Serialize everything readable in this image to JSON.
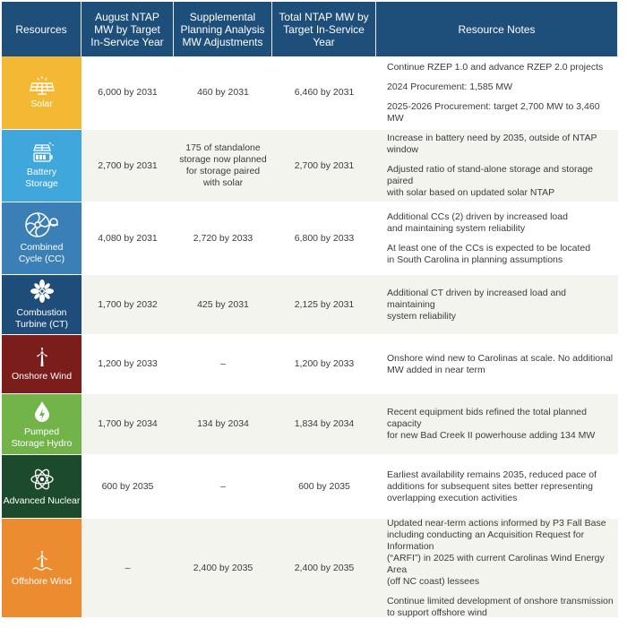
{
  "header": {
    "col1": "Resources",
    "col2": "August NTAP\nMW by Target\nIn-Service Year",
    "col3": "Supplemental\nPlanning Analysis\nMW Adjustments",
    "col4": "Total NTAP MW by\nTarget In-Service Year",
    "col5": "Resource Notes"
  },
  "rows": [
    {
      "resource": "Solar",
      "color": "#f3b935",
      "icon": "solar-panel-icon",
      "ntap": "6,000 by 2031",
      "adjust": "460 by 2031",
      "total": "6,460 by 2031",
      "notes": [
        "Continue RZEP 1.0 and advance RZEP 2.0 projects",
        "2024 Procurement: 1,585 MW",
        "2025-2026 Procurement: target 2,700 MW to 3,460 MW"
      ]
    },
    {
      "resource": "Battery\nStorage",
      "color": "#3fa7db",
      "icon": "battery-solar-icon",
      "ntap": "2,700 by 2031",
      "adjust": "175 of standalone\nstorage now planned\nfor storage paired\nwith solar",
      "total": "2,700 by 2031",
      "notes": [
        "Increase in battery need by 2035, outside of NTAP window",
        "Adjusted ratio of stand-alone storage and storage paired\nwith solar based on updated solar NTAP"
      ]
    },
    {
      "resource": "Combined\nCycle (CC)",
      "color": "#3b7fb7",
      "icon": "turbine-icon",
      "ntap": "4,080 by 2031",
      "adjust": "2,720 by 2033",
      "total": "6,800 by 2033",
      "notes": [
        "Additional CCs (2) driven by increased load\nand maintaining system reliability",
        "At least one of the CCs is expected to be located\nin South Carolina in planning assumptions"
      ]
    },
    {
      "resource": "Combustion\nTurbine (CT)",
      "color": "#1f4d79",
      "icon": "fan-icon",
      "ntap": "1,700 by 2032",
      "adjust": "425 by 2031",
      "total": "2,125 by 2031",
      "notes": [
        "Additional CT driven by increased load and maintaining\nsystem reliability"
      ]
    },
    {
      "resource": "Onshore Wind",
      "color": "#7b1d1b",
      "icon": "wind-turbine-icon",
      "ntap": "1,200 by 2033",
      "adjust": "–",
      "total": "1,200 by 2033",
      "notes": [
        "Onshore wind new to Carolinas at scale. No additional\nMW added in near term"
      ]
    },
    {
      "resource": "Pumped\nStorage Hydro",
      "color": "#72b34a",
      "icon": "water-drop-icon",
      "ntap": "1,700 by 2034",
      "adjust": "134 by 2034",
      "total": "1,834 by 2034",
      "notes": [
        "Recent equipment bids refined the total planned capacity\nfor new Bad Creek II powerhouse adding 134 MW"
      ]
    },
    {
      "resource": "Advanced Nuclear",
      "color": "#1b4b2c",
      "icon": "atom-icon",
      "ntap": "600 by 2035",
      "adjust": "–",
      "total": "600 by 2035",
      "notes": [
        "Earliest availability remains 2035, reduced pace of\nadditions for subsequent sites better representing\noverlapping execution activities"
      ]
    },
    {
      "resource": "Offshore Wind",
      "color": "#ec8c30",
      "icon": "offshore-wind-icon",
      "ntap": "–",
      "adjust": "2,400 by 2035",
      "total": "2,400 by 2035",
      "notes": [
        "Updated near-term actions informed by P3 Fall Base\nincluding conducting an Acquisition Request for Information\n(“ARFI”) in 2025 with current Carolinas Wind Energy Area\n(off NC coast) lessees",
        "Continue limited development of onshore transmission\nto support offshore wind"
      ]
    }
  ]
}
